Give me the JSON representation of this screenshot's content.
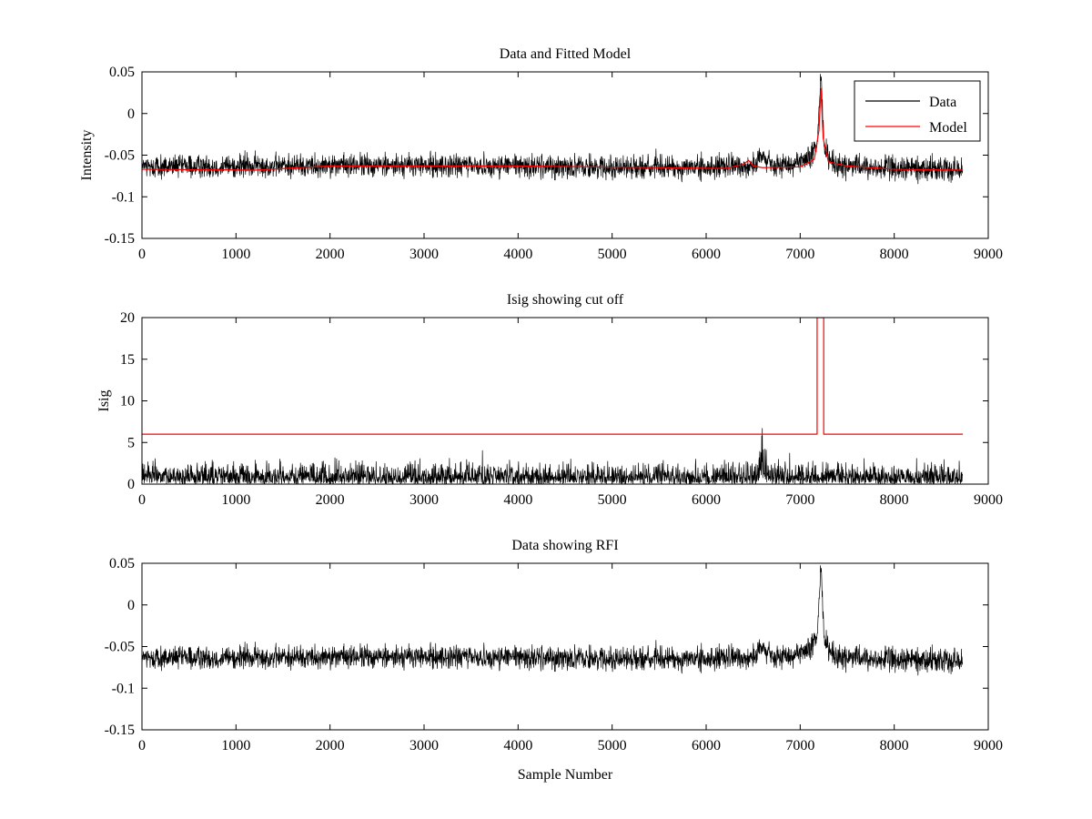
{
  "chart_data": [
    {
      "type": "line",
      "title": "Data and Fitted Model",
      "xlabel": "",
      "ylabel": "Intensity",
      "xlim": [
        0,
        9000
      ],
      "ylim": [
        -0.15,
        0.05
      ],
      "xticks": [
        0,
        1000,
        2000,
        3000,
        4000,
        5000,
        6000,
        7000,
        8000,
        9000
      ],
      "yticks": [
        -0.15,
        -0.1,
        -0.05,
        0,
        0.05
      ],
      "yticklabels": [
        "-0.15",
        "-0.1",
        "-0.05",
        "0",
        "0.05"
      ],
      "legend": {
        "placement": "top-right",
        "entries": [
          "Data",
          "Model"
        ]
      },
      "grid": false,
      "series": [
        {
          "name": "Data",
          "color": "#000000",
          "kind": "noisy",
          "n_samples": 8730,
          "noise_band": 0.012,
          "baseline": [
            [
              0,
              -0.064
            ],
            [
              2000,
              -0.062
            ],
            [
              4000,
              -0.063
            ],
            [
              6000,
              -0.065
            ],
            [
              6500,
              -0.062
            ],
            [
              6600,
              -0.052
            ],
            [
              6700,
              -0.064
            ],
            [
              7100,
              -0.055
            ],
            [
              7180,
              -0.04
            ],
            [
              7220,
              0.05
            ],
            [
              7260,
              -0.045
            ],
            [
              7400,
              -0.063
            ],
            [
              8000,
              -0.066
            ],
            [
              8730,
              -0.066
            ]
          ]
        },
        {
          "name": "Model",
          "color": "#ff0000",
          "kind": "line",
          "points": [
            [
              0,
              -0.067
            ],
            [
              1200,
              -0.068
            ],
            [
              2000,
              -0.063
            ],
            [
              4000,
              -0.063
            ],
            [
              5500,
              -0.065
            ],
            [
              6200,
              -0.066
            ],
            [
              6400,
              -0.061
            ],
            [
              6450,
              -0.056
            ],
            [
              6500,
              -0.063
            ],
            [
              6600,
              -0.065
            ],
            [
              7000,
              -0.064
            ],
            [
              7150,
              -0.055
            ],
            [
              7200,
              -0.02
            ],
            [
              7220,
              0.03
            ],
            [
              7245,
              -0.03
            ],
            [
              7300,
              -0.058
            ],
            [
              7500,
              -0.063
            ],
            [
              8000,
              -0.067
            ],
            [
              8730,
              -0.068
            ]
          ]
        }
      ]
    },
    {
      "type": "line",
      "title": "Isig showing cut off",
      "xlabel": "",
      "ylabel": "Isig",
      "xlim": [
        0,
        9000
      ],
      "ylim": [
        0,
        20
      ],
      "xticks": [
        0,
        1000,
        2000,
        3000,
        4000,
        5000,
        6000,
        7000,
        8000,
        9000
      ],
      "yticks": [
        0,
        5,
        10,
        15,
        20
      ],
      "yticklabels": [
        "0",
        "5",
        "10",
        "15",
        "20"
      ],
      "grid": false,
      "series": [
        {
          "color": "#000000",
          "kind": "noisy-positive",
          "n_samples": 8730,
          "noise_band": 1.6,
          "baseline": [
            [
              0,
              0.9
            ],
            [
              6500,
              0.9
            ],
            [
              6600,
              2.5
            ],
            [
              6700,
              0.9
            ],
            [
              8730,
              0.9
            ]
          ]
        },
        {
          "color": "#ff0000",
          "kind": "line",
          "points": [
            [
              0,
              6
            ],
            [
              7180,
              6
            ],
            [
              7180,
              20
            ],
            [
              7250,
              20
            ],
            [
              7250,
              6
            ],
            [
              8730,
              6
            ]
          ]
        }
      ]
    },
    {
      "type": "line",
      "title": "Data showing RFI",
      "xlabel": "Sample Number",
      "ylabel": "",
      "xlim": [
        0,
        9000
      ],
      "ylim": [
        -0.15,
        0.05
      ],
      "xticks": [
        0,
        1000,
        2000,
        3000,
        4000,
        5000,
        6000,
        7000,
        8000,
        9000
      ],
      "yticks": [
        -0.15,
        -0.1,
        -0.05,
        0,
        0.05
      ],
      "yticklabels": [
        "-0.15",
        "-0.1",
        "-0.05",
        "0",
        "0.05"
      ],
      "grid": false,
      "series": [
        {
          "color": "#000000",
          "kind": "noisy",
          "n_samples": 8730,
          "noise_band": 0.012,
          "baseline": [
            [
              0,
              -0.064
            ],
            [
              2000,
              -0.062
            ],
            [
              4000,
              -0.063
            ],
            [
              6000,
              -0.065
            ],
            [
              6500,
              -0.062
            ],
            [
              6600,
              -0.052
            ],
            [
              6700,
              -0.064
            ],
            [
              7100,
              -0.055
            ],
            [
              7180,
              -0.04
            ],
            [
              7220,
              0.05
            ],
            [
              7260,
              -0.045
            ],
            [
              7400,
              -0.063
            ],
            [
              8000,
              -0.066
            ],
            [
              8730,
              -0.066
            ]
          ]
        }
      ]
    }
  ]
}
